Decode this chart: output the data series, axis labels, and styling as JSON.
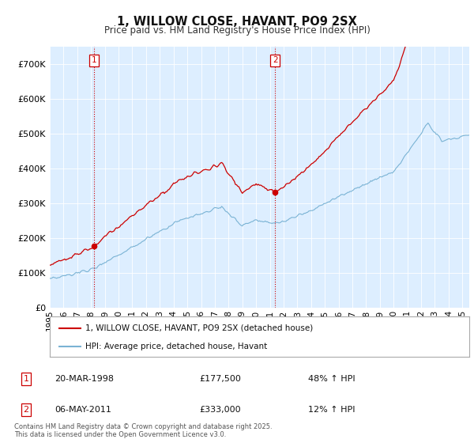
{
  "title": "1, WILLOW CLOSE, HAVANT, PO9 2SX",
  "subtitle": "Price paid vs. HM Land Registry's House Price Index (HPI)",
  "legend_line1": "1, WILLOW CLOSE, HAVANT, PO9 2SX (detached house)",
  "legend_line2": "HPI: Average price, detached house, Havant",
  "sale1_date": "20-MAR-1998",
  "sale1_price": 177500,
  "sale1_label": "48% ↑ HPI",
  "sale2_date": "06-MAY-2011",
  "sale2_price": 333000,
  "sale2_label": "12% ↑ HPI",
  "footnote": "Contains HM Land Registry data © Crown copyright and database right 2025.\nThis data is licensed under the Open Government Licence v3.0.",
  "hpi_color": "#7ab3d4",
  "price_color": "#cc0000",
  "sale_vline_color": "#cc0000",
  "plot_bg_color": "#ddeeff",
  "background_color": "#ffffff",
  "ylim": [
    0,
    750000
  ],
  "xlim_start": 1995.0,
  "xlim_end": 2025.5,
  "sale1_year": 1998.208,
  "sale2_year": 2011.375
}
